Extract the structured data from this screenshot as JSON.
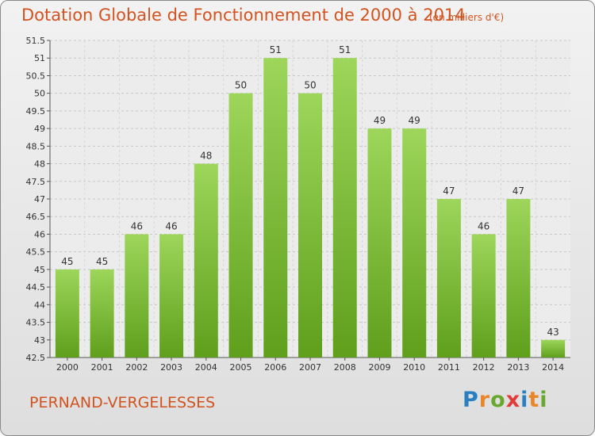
{
  "title": "Dotation Globale de Fonctionnement de 2000 à 2014",
  "subtitle": "(en milliers d'€)",
  "commune": "PERNAND-VERGELESSES",
  "logo": {
    "letters": [
      {
        "ch": "P",
        "color": "#2a7fc1"
      },
      {
        "ch": "r",
        "color": "#e8862a"
      },
      {
        "ch": "o",
        "color": "#69a82e"
      },
      {
        "ch": "x",
        "color": "#e23b3b"
      },
      {
        "ch": "i",
        "color": "#2a7fc1"
      },
      {
        "ch": "t",
        "color": "#e8862a"
      },
      {
        "ch": "i",
        "color": "#69a82e"
      }
    ]
  },
  "colors": {
    "title": "#d2531f",
    "bar_light": "#9dd65a",
    "bar_dark": "#5f9f1c",
    "text": "#333333"
  },
  "chart_data": {
    "type": "bar",
    "title": "Dotation Globale de Fonctionnement de 2000 à 2014",
    "subtitle": "(en milliers d'€)",
    "categories": [
      "2000",
      "2001",
      "2002",
      "2003",
      "2004",
      "2005",
      "2006",
      "2007",
      "2008",
      "2009",
      "2010",
      "2011",
      "2012",
      "2013",
      "2014"
    ],
    "values": [
      45,
      45,
      46,
      46,
      48,
      50,
      51,
      50,
      51,
      49,
      49,
      47,
      46,
      47,
      43
    ],
    "ylim": [
      42.5,
      51.5
    ],
    "yticks": [
      "42.5",
      "43",
      "43.5",
      "44",
      "44.5",
      "45",
      "45.5",
      "46",
      "46.5",
      "47",
      "47.5",
      "48",
      "48.5",
      "49",
      "49.5",
      "50",
      "50.5",
      "51",
      "51.5"
    ],
    "grid": true
  }
}
